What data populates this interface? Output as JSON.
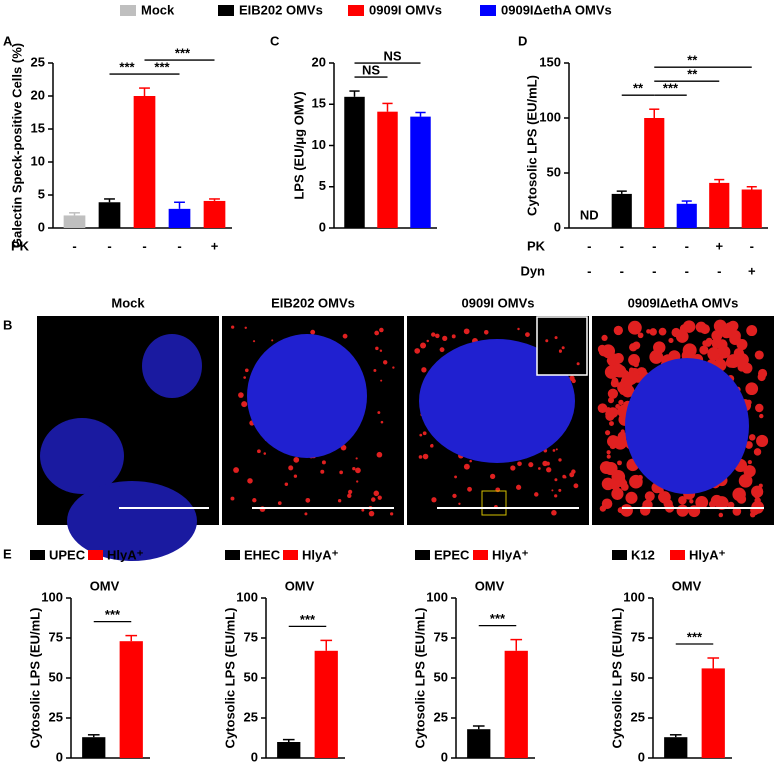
{
  "legend": [
    {
      "name": "Mock",
      "color": "#bfbfbf"
    },
    {
      "name": "EIB202 OMVs",
      "color": "#000000"
    },
    {
      "name": "0909I OMVs",
      "color": "#ff0000"
    },
    {
      "name": "0909IΔethA OMVs",
      "color": "#0000ff"
    }
  ],
  "microscopy": {
    "panel": "B",
    "titles": [
      "Mock",
      "EIB202 OMVs",
      "0909I OMVs",
      "0909IΔethA OMVs"
    ]
  },
  "chart_data": [
    {
      "type": "bar",
      "panel": "A",
      "ylabel": "Galectin  Speck-positive Cells (%)",
      "values": [
        1.9,
        3.9,
        20,
        2.9,
        4.1
      ],
      "errors": [
        0.4,
        0.5,
        1.2,
        1.0,
        0.3
      ],
      "colors": [
        "#bfbfbf",
        "#000000",
        "#ff0000",
        "#0000ff",
        "#ff0000"
      ],
      "ylim": [
        0,
        25
      ],
      "yticks": [
        0,
        5,
        10,
        15,
        20,
        25
      ],
      "conditions": [
        {
          "name": "PK",
          "marks": [
            "-",
            "-",
            "-",
            "-",
            "+"
          ]
        }
      ],
      "brackets": [
        {
          "between": [
            1,
            2
          ],
          "label": "***"
        },
        {
          "between": [
            2,
            3
          ],
          "label": "***"
        },
        {
          "between": [
            2,
            4
          ],
          "label": "***"
        }
      ]
    },
    {
      "type": "bar",
      "panel": "C",
      "ylabel": "LPS  (EU/μg OMV)",
      "values": [
        15.9,
        14.1,
        13.5
      ],
      "errors": [
        0.7,
        1.0,
        0.5
      ],
      "colors": [
        "#000000",
        "#ff0000",
        "#0000ff"
      ],
      "ylim": [
        0,
        20
      ],
      "yticks": [
        0,
        5,
        10,
        15,
        20
      ],
      "brackets": [
        {
          "between": [
            0,
            1
          ],
          "label": "NS"
        },
        {
          "between": [
            0,
            2
          ],
          "label": "NS"
        }
      ]
    },
    {
      "type": "bar",
      "panel": "D",
      "ylabel": "Cytosolic LPS (EU/mL)",
      "values": [
        null,
        31,
        100,
        22,
        41,
        35
      ],
      "value_labels": [
        "ND",
        null,
        null,
        null,
        null,
        null
      ],
      "errors": [
        null,
        2.5,
        8,
        2.5,
        3,
        2.5
      ],
      "colors": [
        null,
        "#000000",
        "#ff0000",
        "#0000ff",
        "#ff0000",
        "#ff0000"
      ],
      "ylim": [
        0,
        150
      ],
      "yticks": [
        0,
        50,
        100,
        150
      ],
      "conditions": [
        {
          "name": "PK",
          "marks": [
            "-",
            "-",
            "-",
            "-",
            "+",
            "-"
          ]
        },
        {
          "name": "Dyn",
          "marks": [
            "-",
            "-",
            "-",
            "-",
            "-",
            "+"
          ]
        }
      ],
      "brackets": [
        {
          "between": [
            1,
            2
          ],
          "label": "**"
        },
        {
          "between": [
            2,
            3
          ],
          "label": "***"
        },
        {
          "between": [
            2,
            4
          ],
          "label": "**"
        },
        {
          "between": [
            2,
            5
          ],
          "label": "**"
        }
      ]
    },
    {
      "type": "bar",
      "panel": "E",
      "title": "OMV",
      "legend": [
        {
          "name": "UPEC",
          "color": "#000000"
        },
        {
          "name": "HlyA⁺",
          "color": "#ff0000"
        }
      ],
      "ylabel": "Cytosolic LPS (EU/mL)",
      "values": [
        13,
        73
      ],
      "errors": [
        1.5,
        3.5
      ],
      "colors": [
        "#000000",
        "#ff0000"
      ],
      "ylim": [
        0,
        100
      ],
      "yticks": [
        0,
        25,
        50,
        75,
        100
      ],
      "brackets": [
        {
          "between": [
            0,
            1
          ],
          "label": "***"
        }
      ]
    },
    {
      "type": "bar",
      "title": "OMV",
      "legend": [
        {
          "name": "EHEC",
          "color": "#000000"
        },
        {
          "name": "HlyA⁺",
          "color": "#ff0000"
        }
      ],
      "ylabel": "Cytosolic LPS (EU/mL)",
      "values": [
        10,
        67
      ],
      "errors": [
        1.5,
        6.5
      ],
      "colors": [
        "#000000",
        "#ff0000"
      ],
      "ylim": [
        0,
        100
      ],
      "yticks": [
        0,
        25,
        50,
        75,
        100
      ],
      "brackets": [
        {
          "between": [
            0,
            1
          ],
          "label": "***"
        }
      ]
    },
    {
      "type": "bar",
      "title": "OMV",
      "legend": [
        {
          "name": "EPEC",
          "color": "#000000"
        },
        {
          "name": "HlyA⁺",
          "color": "#ff0000"
        }
      ],
      "ylabel": "Cytosolic LPS (EU/mL)",
      "values": [
        18,
        67
      ],
      "errors": [
        2,
        7
      ],
      "colors": [
        "#000000",
        "#ff0000"
      ],
      "ylim": [
        0,
        100
      ],
      "yticks": [
        0,
        25,
        50,
        75,
        100
      ],
      "brackets": [
        {
          "between": [
            0,
            1
          ],
          "label": "***"
        }
      ]
    },
    {
      "type": "bar",
      "title": "OMV",
      "legend": [
        {
          "name": "K12",
          "color": "#000000"
        },
        {
          "name": "HlyA⁺",
          "color": "#ff0000"
        }
      ],
      "ylabel": "Cytosolic LPS (EU/mL)",
      "values": [
        13,
        56
      ],
      "errors": [
        1.5,
        6.5
      ],
      "colors": [
        "#000000",
        "#ff0000"
      ],
      "ylim": [
        0,
        100
      ],
      "yticks": [
        0,
        25,
        50,
        75,
        100
      ],
      "brackets": [
        {
          "between": [
            0,
            1
          ],
          "label": "***"
        }
      ]
    }
  ]
}
